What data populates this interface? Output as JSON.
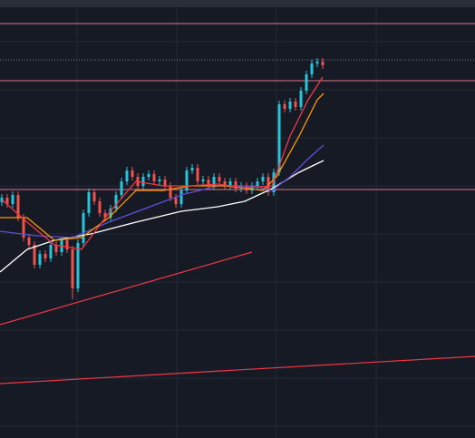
{
  "chart_data": {
    "type": "candlestick",
    "xlim": [
      0,
      524
    ],
    "ylim": [
      0,
      483
    ],
    "xticks": [
      85,
      195,
      305,
      415
    ],
    "yticks": [
      437,
      384,
      331,
      278,
      225,
      172,
      119,
      66,
      13
    ],
    "grid": true,
    "background": "#161a25",
    "grid_color": "#242836",
    "up_color": "#26c6da",
    "down_color": "#ef5350",
    "x": [
      2,
      8,
      14,
      20,
      26,
      32,
      38,
      44,
      50,
      56,
      62,
      68,
      74,
      80,
      86,
      92,
      98,
      104,
      110,
      116,
      122,
      128,
      134,
      140,
      146,
      152,
      158,
      164,
      170,
      176,
      182,
      188,
      194,
      200,
      206,
      212,
      218,
      224,
      230,
      236,
      242,
      248,
      254,
      260,
      266,
      272,
      278,
      284,
      290,
      296,
      302,
      308,
      314,
      320,
      326,
      332,
      338,
      344,
      350,
      356
    ],
    "open": [
      260,
      265,
      258,
      268,
      243,
      221,
      213,
      191,
      203,
      198,
      213,
      205,
      218,
      208,
      165,
      215,
      248,
      271,
      261,
      248,
      243,
      253,
      268,
      283,
      295,
      288,
      278,
      288,
      291,
      283,
      285,
      278,
      265,
      258,
      273,
      295,
      298,
      283,
      285,
      278,
      288,
      283,
      278,
      283,
      275,
      278,
      273,
      278,
      283,
      288,
      271,
      293,
      368,
      363,
      371,
      365,
      383,
      401,
      413,
      415
    ],
    "high": [
      269,
      269,
      272,
      272,
      247,
      225,
      217,
      207,
      207,
      217,
      217,
      222,
      222,
      212,
      219,
      252,
      275,
      275,
      265,
      252,
      257,
      272,
      287,
      299,
      299,
      292,
      292,
      295,
      295,
      289,
      289,
      282,
      269,
      277,
      299,
      302,
      302,
      289,
      289,
      292,
      292,
      287,
      287,
      287,
      282,
      282,
      282,
      287,
      292,
      292,
      297,
      372,
      372,
      375,
      375,
      387,
      405,
      417,
      419,
      419
    ],
    "low": [
      256,
      254,
      254,
      239,
      217,
      209,
      187,
      187,
      194,
      194,
      201,
      201,
      204,
      153,
      161,
      211,
      244,
      257,
      244,
      239,
      239,
      249,
      264,
      279,
      284,
      274,
      274,
      284,
      279,
      279,
      274,
      261,
      254,
      254,
      269,
      291,
      279,
      279,
      274,
      274,
      279,
      274,
      274,
      271,
      271,
      269,
      269,
      274,
      279,
      267,
      267,
      289,
      359,
      359,
      361,
      361,
      379,
      397,
      409,
      407
    ],
    "close": [
      265,
      258,
      268,
      243,
      221,
      213,
      191,
      203,
      198,
      213,
      205,
      218,
      208,
      165,
      215,
      248,
      271,
      261,
      248,
      243,
      253,
      268,
      283,
      295,
      288,
      278,
      288,
      291,
      283,
      285,
      278,
      265,
      258,
      273,
      295,
      298,
      283,
      285,
      278,
      288,
      283,
      278,
      283,
      275,
      278,
      273,
      278,
      283,
      288,
      271,
      293,
      368,
      363,
      371,
      365,
      383,
      401,
      413,
      415,
      411
    ],
    "series": [
      {
        "color": "#ffffff",
        "x": [
          0,
          30,
          60,
          100,
          150,
          200,
          240,
          270,
          300,
          330,
          357
        ],
        "values": [
          183,
          208,
          218,
          225,
          238,
          250,
          255,
          261,
          275,
          293,
          306
        ]
      },
      {
        "color": "#5e4fd6",
        "x": [
          0,
          40,
          80,
          120,
          160,
          200,
          240,
          280,
          300,
          320,
          340,
          357
        ],
        "values": [
          228,
          223,
          221,
          238,
          253,
          268,
          278,
          278,
          273,
          288,
          308,
          323
        ]
      },
      {
        "color": "#ff9800",
        "x": [
          0,
          30,
          60,
          90,
          120,
          150,
          180,
          210,
          250,
          290,
          305,
          330,
          350,
          357
        ],
        "values": [
          243,
          243,
          218,
          221,
          243,
          273,
          273,
          278,
          278,
          273,
          288,
          333,
          373,
          380
        ]
      },
      {
        "color": "#f23645",
        "x": [
          2,
          30,
          60,
          90,
          120,
          150,
          180,
          210,
          240,
          270,
          300,
          320,
          340,
          356
        ],
        "values": [
          263,
          238,
          213,
          208,
          248,
          283,
          278,
          278,
          280,
          276,
          278,
          333,
          373,
          398
        ]
      }
    ],
    "levels": [
      457,
      394,
      274
    ],
    "level_color": "#e8728d",
    "dotted_levels": [
      417
    ],
    "dotted_color": "#787b86",
    "trendlines": [
      {
        "color": "#f23645",
        "x": [
          0,
          278
        ],
        "values": [
          125,
          205
        ]
      },
      {
        "color": "#f23645",
        "x": [
          0,
          524
        ],
        "values": [
          60,
          90
        ]
      }
    ]
  }
}
